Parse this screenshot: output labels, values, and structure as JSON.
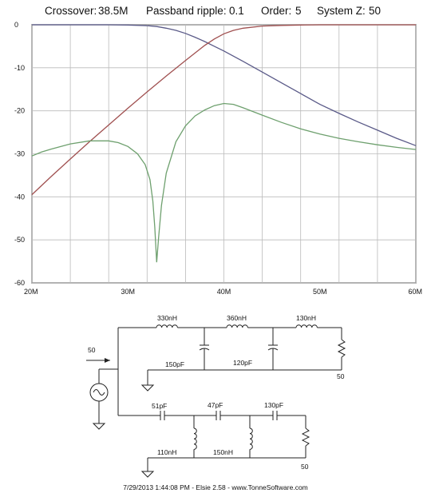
{
  "header": {
    "crossover_label": "Crossover:",
    "crossover_value": "38.5M",
    "ripple_label": "Passband ripple:",
    "ripple_value": "0.1",
    "order_label": "Order:",
    "order_value": "5",
    "systemz_label": "System Z:",
    "systemz_value": "50"
  },
  "chart_data": {
    "type": "line",
    "xlim": [
      20,
      60
    ],
    "ylim": [
      -60,
      0
    ],
    "y_ticks": [
      "0",
      "-10",
      "-20",
      "-30",
      "-40",
      "-50",
      "-60"
    ],
    "x_ticks": [
      {
        "x": 20,
        "label": "20M"
      },
      {
        "x": 30,
        "label": "30M"
      },
      {
        "x": 40,
        "label": "40M"
      },
      {
        "x": 50,
        "label": "50M"
      },
      {
        "x": 60,
        "label": "60M"
      }
    ],
    "x_gridlines": [
      20,
      24,
      28,
      32,
      36,
      40,
      44,
      48,
      52,
      56,
      60
    ],
    "y_gridlines": [
      0,
      -10,
      -20,
      -30,
      -40,
      -50,
      -60
    ],
    "grid": true,
    "series": [
      {
        "color": "#5a5a88",
        "x": [
          20,
          24,
          28,
          30,
          32,
          33,
          34,
          35,
          36,
          37,
          38,
          39,
          40,
          42,
          44,
          46,
          48,
          50,
          52,
          54,
          56,
          58,
          60
        ],
        "y": [
          0,
          0,
          0,
          -0.05,
          -0.2,
          -0.4,
          -0.8,
          -1.3,
          -2.0,
          -2.9,
          -3.9,
          -5.0,
          -6.1,
          -8.5,
          -11.0,
          -13.5,
          -16.0,
          -18.5,
          -20.6,
          -22.6,
          -24.5,
          -26.4,
          -28.1
        ]
      },
      {
        "color": "#a05050",
        "x": [
          20,
          22,
          24,
          26,
          28,
          30,
          32,
          34,
          36,
          38,
          39,
          40,
          41,
          42,
          44,
          46,
          48,
          50,
          52,
          56,
          60
        ],
        "y": [
          -39.5,
          -35.3,
          -31.2,
          -27.2,
          -23.3,
          -19.4,
          -15.6,
          -11.9,
          -8.3,
          -4.8,
          -3.3,
          -2.1,
          -1.3,
          -0.8,
          -0.3,
          -0.15,
          -0.05,
          0,
          0,
          0,
          0
        ]
      },
      {
        "color": "#6ea06e",
        "x": [
          20,
          21,
          22,
          24,
          26,
          28,
          29,
          30,
          31,
          31.8,
          32.3,
          32.6,
          32.8,
          33.0,
          33.2,
          33.5,
          34.0,
          35,
          36,
          37,
          38,
          39,
          40,
          41,
          42,
          44,
          46,
          48,
          50,
          52,
          54,
          56,
          58,
          60
        ],
        "y": [
          -30.5,
          -29.6,
          -28.9,
          -27.7,
          -27.0,
          -27.0,
          -27.4,
          -28.3,
          -30.0,
          -32.5,
          -36.0,
          -41.0,
          -47.0,
          -55.2,
          -49.5,
          -42.0,
          -34.5,
          -27.2,
          -23.5,
          -21.2,
          -19.8,
          -18.8,
          -18.3,
          -18.5,
          -19.3,
          -21.0,
          -22.7,
          -24.2,
          -25.4,
          -26.4,
          -27.2,
          -27.9,
          -28.5,
          -29.0
        ]
      }
    ]
  },
  "schematic": {
    "source_label": "50",
    "high_pass": {
      "l1": "330nH",
      "l2": "360nH",
      "l3": "130nH",
      "c1": "150pF",
      "c2": "120pF",
      "load": "50"
    },
    "low_pass": {
      "c1": "51pF",
      "c2": "47pF",
      "c3": "130pF",
      "l1": "110nH",
      "l2": "150nH",
      "load": "50"
    }
  },
  "footer": {
    "text": "7/29/2013 1:44:08 PM   -   Elsie 2.58   -   www.TonneSoftware.com"
  }
}
